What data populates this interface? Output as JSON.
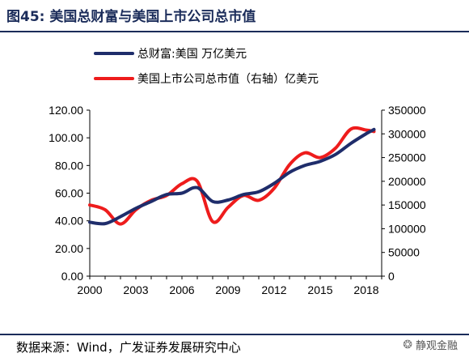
{
  "title": "图45:  美国总财富与美国上市公司总市值",
  "source": "数据来源：Wind，广发证券发展研究中心",
  "watermark": "静观金融",
  "colors": {
    "series1": "#1f2d6b",
    "series2": "#ee1c1c",
    "title": "#1b2c5a"
  },
  "chart_data": {
    "type": "line",
    "x_ticks": [
      2000,
      2003,
      2006,
      2009,
      2012,
      2015,
      2018
    ],
    "xlim": [
      2000,
      2019
    ],
    "y_left": {
      "ticks": [
        "0.00",
        "20.00",
        "40.00",
        "60.00",
        "80.00",
        "100.00",
        "120.00"
      ],
      "ylim": [
        0,
        120
      ]
    },
    "y_right": {
      "ticks": [
        "0",
        "50000",
        "100000",
        "150000",
        "200000",
        "250000",
        "300000",
        "350000"
      ],
      "ylim": [
        0,
        350000
      ]
    },
    "legend_placement": "top-left",
    "grid": false,
    "series": [
      {
        "name": "总财富:美国 万亿美元",
        "axis": "left",
        "x": [
          2000,
          2001,
          2002,
          2003,
          2004,
          2005,
          2006,
          2007,
          2008,
          2009,
          2010,
          2011,
          2012,
          2013,
          2014,
          2015,
          2016,
          2017,
          2018,
          2018.5
        ],
        "y": [
          39,
          38,
          43,
          49,
          54,
          59,
          60,
          64,
          54,
          55,
          59,
          61,
          67,
          75,
          80,
          83,
          88,
          96,
          103,
          106
        ]
      },
      {
        "name": "美国上市公司总市值（右轴）亿美元",
        "axis": "right",
        "x": [
          2000,
          2001,
          2002,
          2003,
          2004,
          2005,
          2006,
          2007,
          2008,
          2009,
          2010,
          2011,
          2012,
          2013,
          2014,
          2015,
          2016,
          2017,
          2018,
          2018.5
        ],
        "y": [
          150000,
          140000,
          110000,
          140000,
          160000,
          170000,
          195000,
          200000,
          115000,
          145000,
          170000,
          160000,
          185000,
          235000,
          260000,
          250000,
          270000,
          310000,
          308000,
          305000
        ]
      }
    ]
  }
}
